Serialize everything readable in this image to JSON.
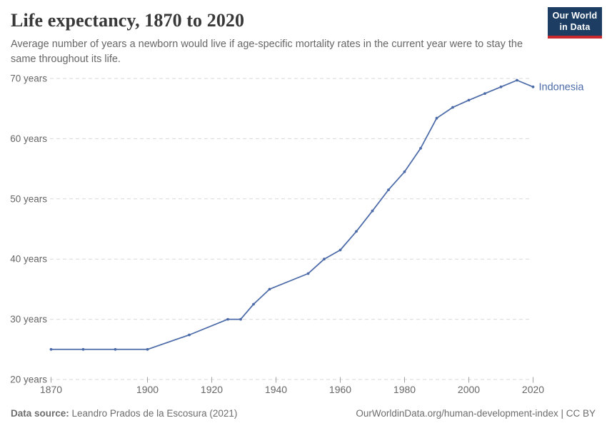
{
  "header": {
    "title": "Life expectancy, 1870 to 2020",
    "subtitle": "Average number of years a newborn would live if age-specific mortality rates in the current year were to stay the same throughout its life.",
    "logo": {
      "line1": "Our World",
      "line2": "in Data"
    }
  },
  "chart_data": {
    "type": "line",
    "title": "Life expectancy, 1870 to 2020",
    "xlabel": "",
    "ylabel": "",
    "xlim": [
      1870,
      2020
    ],
    "ylim": [
      20,
      70
    ],
    "x_ticks": [
      1870,
      1900,
      1920,
      1940,
      1960,
      1980,
      2000,
      2020
    ],
    "y_ticks": [
      20,
      30,
      40,
      50,
      60,
      70
    ],
    "y_tick_suffix": " years",
    "grid": "horizontal-dashed",
    "legend_position": "end-of-line",
    "series": [
      {
        "name": "Indonesia",
        "color": "#4c6ba8",
        "x": [
          1870,
          1880,
          1890,
          1900,
          1913,
          1925,
          1929,
          1933,
          1938,
          1950,
          1955,
          1960,
          1965,
          1970,
          1975,
          1980,
          1985,
          1990,
          1995,
          2000,
          2005,
          2010,
          2015,
          2020
        ],
        "y": [
          25,
          25,
          25,
          25,
          27.4,
          30,
          30,
          32.5,
          35,
          37.6,
          40,
          41.5,
          44.6,
          48,
          51.5,
          54.5,
          58.4,
          63.4,
          65.2,
          66.4,
          67.5,
          68.6,
          69.7,
          68.6
        ]
      }
    ]
  },
  "footer": {
    "source_label": "Data source:",
    "source_text": " Leandro Prados de la Escosura (2021)",
    "link_text": "OurWorldinData.org/human-development-index",
    "license": " | CC BY"
  },
  "colors": {
    "line": "#4c6ba8",
    "grid": "#d9d9d9",
    "tick_mark": "#a3a3a3",
    "tick_text": "#666666",
    "logo_bg": "#1d3d63",
    "logo_accent": "#c8292e"
  }
}
